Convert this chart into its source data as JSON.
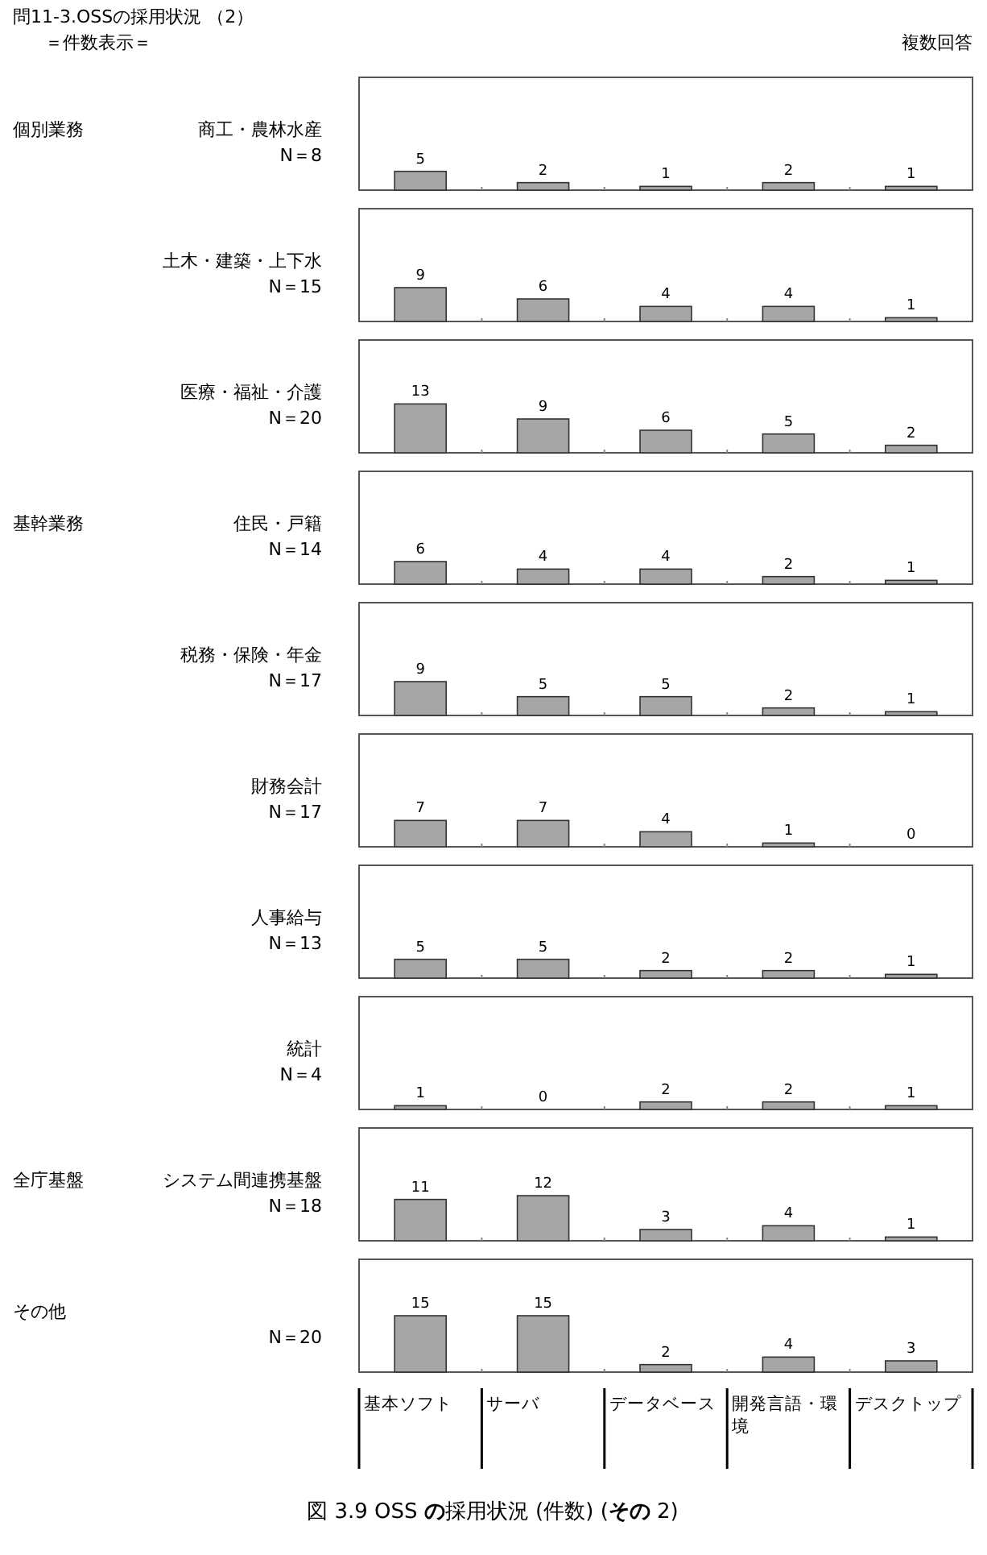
{
  "chart_data": [
    {
      "type": "other",
      "title": "問11-3.OSSの採用状況 （2）",
      "subtitle": "＝件数表示＝",
      "annotations": [
        "複数回答"
      ]
    },
    {
      "type": "bar",
      "title": "商工・農林水産",
      "subtitle": "N＝8",
      "annotations": [
        "個別業務"
      ],
      "categories": [
        null,
        null,
        null,
        null,
        null
      ],
      "values": [
        5,
        2,
        1,
        2,
        1
      ],
      "color": "#a6a6a6",
      "data_labels": true
    },
    {
      "type": "bar",
      "title": "土木・建築・上下水",
      "subtitle": "N＝15",
      "categories": [
        null,
        null,
        null,
        null,
        null
      ],
      "values": [
        9,
        6,
        4,
        4,
        1
      ],
      "color": "#a6a6a6",
      "data_labels": true
    },
    {
      "type": "bar",
      "title": "医療・福祉・介護",
      "subtitle": "N＝20",
      "categories": [
        null,
        null,
        null,
        null,
        null
      ],
      "values": [
        13,
        9,
        6,
        5,
        2
      ],
      "color": "#a6a6a6",
      "data_labels": true
    },
    {
      "type": "bar",
      "title": "住民・戸籍",
      "subtitle": "N＝14",
      "annotations": [
        "基幹業務"
      ],
      "categories": [
        null,
        null,
        null,
        null,
        null
      ],
      "values": [
        6,
        4,
        4,
        2,
        1
      ],
      "color": "#a6a6a6",
      "data_labels": true
    },
    {
      "type": "bar",
      "title": "税務・保険・年金",
      "subtitle": "N＝17",
      "categories": [
        null,
        null,
        null,
        null,
        null
      ],
      "values": [
        9,
        5,
        5,
        2,
        1
      ],
      "color": "#a6a6a6",
      "data_labels": true
    },
    {
      "type": "bar",
      "title": "財務会計",
      "subtitle": "N＝17",
      "categories": [
        null,
        null,
        null,
        null,
        null
      ],
      "values": [
        7,
        7,
        4,
        1,
        0
      ],
      "color": "#a6a6a6",
      "data_labels": true
    },
    {
      "type": "bar",
      "title": "人事給与",
      "subtitle": "N＝13",
      "categories": [
        null,
        null,
        null,
        null,
        null
      ],
      "values": [
        5,
        5,
        2,
        2,
        1
      ],
      "color": "#a6a6a6",
      "data_labels": true
    },
    {
      "type": "bar",
      "title": "統計",
      "subtitle": "N＝4",
      "categories": [
        null,
        null,
        null,
        null,
        null
      ],
      "values": [
        1,
        0,
        2,
        2,
        1
      ],
      "color": "#a6a6a6",
      "data_labels": true
    },
    {
      "type": "bar",
      "title": "システム間連携基盤",
      "subtitle": "N＝18",
      "annotations": [
        "全庁基盤"
      ],
      "categories": [
        null,
        null,
        null,
        null,
        null
      ],
      "values": [
        11,
        12,
        3,
        4,
        1
      ],
      "color": "#a6a6a6",
      "data_labels": true
    },
    {
      "type": "bar",
      "subtitle": "N＝20",
      "annotations": [
        "その他"
      ],
      "categories": [
        "基本ソフト",
        "サーバ",
        "データベース",
        "開発言語・環境",
        "デスクトップ"
      ],
      "values": [
        15,
        15,
        2,
        4,
        3
      ],
      "color": "#a6a6a6",
      "data_labels": true
    },
    {
      "type": "other",
      "title": "図 3.9 OSS **の**採用状況 (件数) (**その** 2)"
    }
  ]
}
